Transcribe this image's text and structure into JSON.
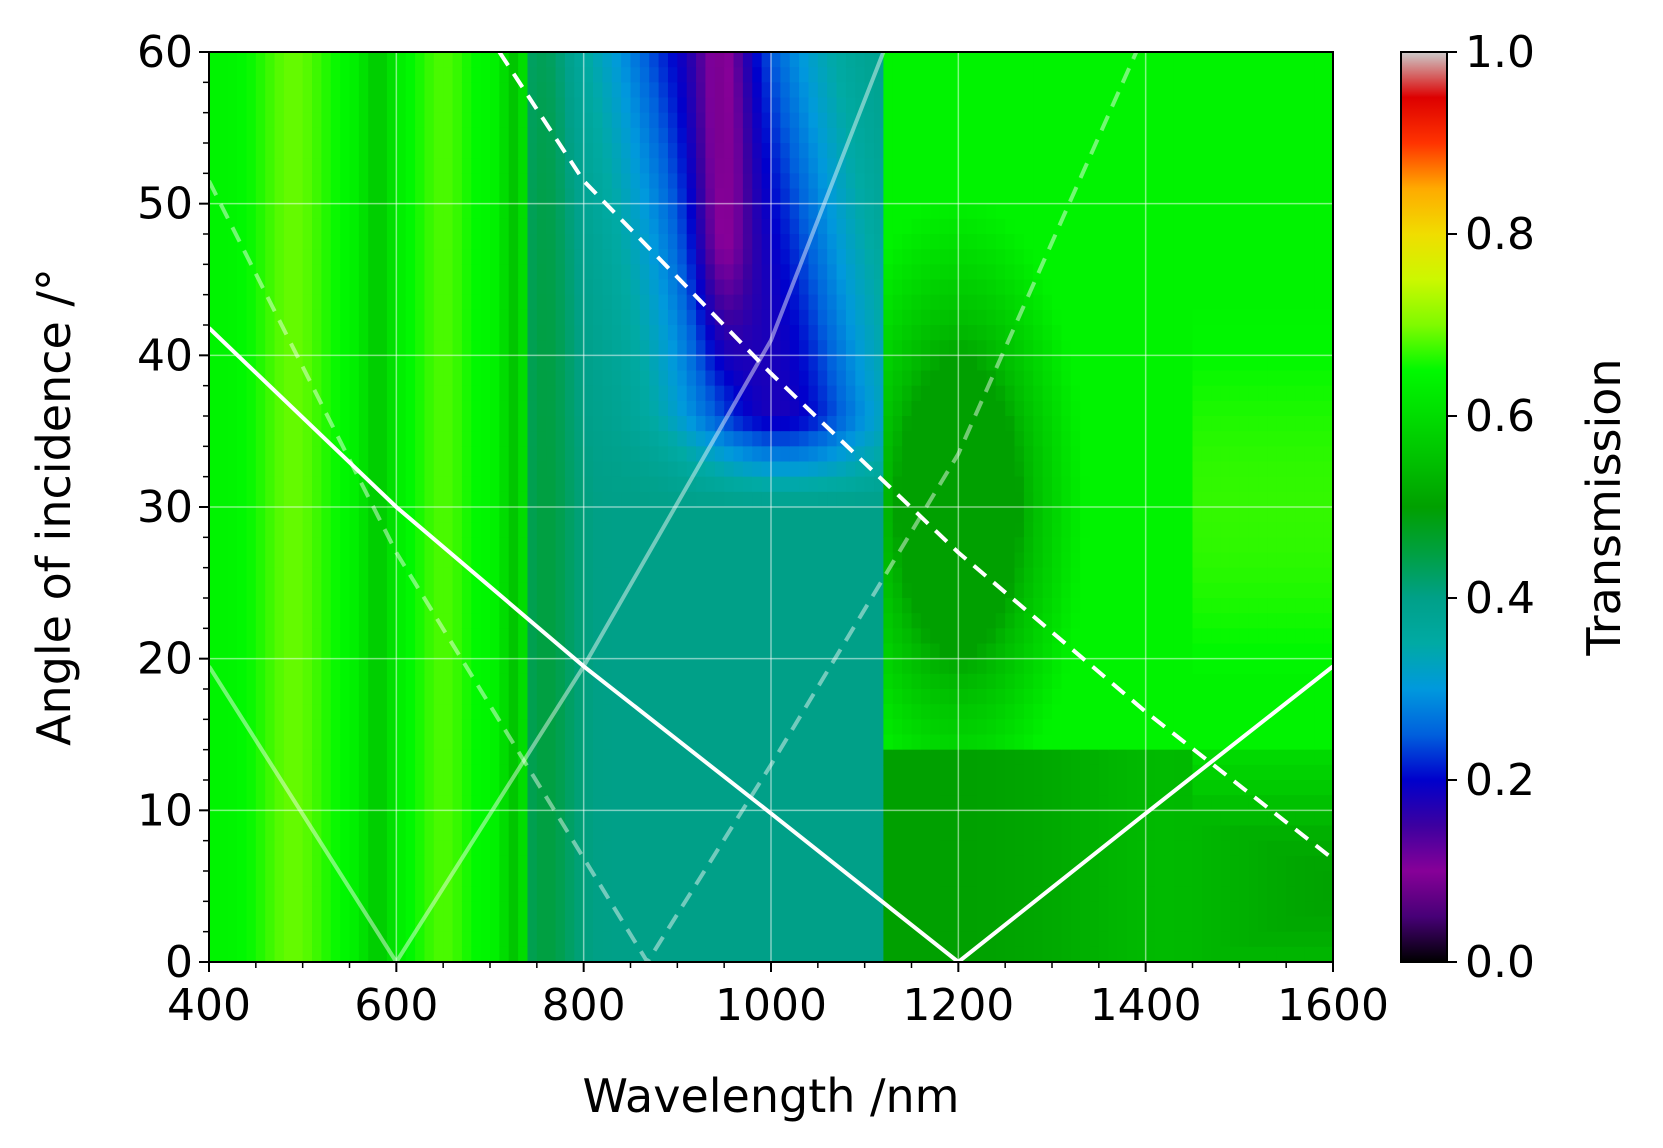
{
  "chart_data": {
    "type": "heatmap",
    "xlabel": "Wavelength /nm",
    "ylabel": "Angle of incidence /°",
    "colorbar_label": "Transmission",
    "xlim": [
      400,
      1600
    ],
    "ylim": [
      0,
      60
    ],
    "clim": [
      0,
      1
    ],
    "x_ticks": [
      400,
      600,
      800,
      1000,
      1200,
      1400,
      1600
    ],
    "x_tick_labels": [
      "400",
      "600",
      "800",
      "1000",
      "1200",
      "1400",
      "1600"
    ],
    "y_ticks": [
      0,
      10,
      20,
      30,
      40,
      50,
      60
    ],
    "y_tick_labels": [
      "0",
      "10",
      "20",
      "30",
      "40",
      "50",
      "60"
    ],
    "colorbar_ticks": [
      0.0,
      0.2,
      0.4,
      0.6,
      0.8,
      1.0
    ],
    "colorbar_tick_labels": [
      "0.0",
      "0.2",
      "0.4",
      "0.6",
      "0.8",
      "1.0"
    ],
    "grid": true,
    "colormap": "nipy_spectral",
    "colormap_stops": [
      {
        "v": 0.0,
        "color": "#000000"
      },
      {
        "v": 0.05,
        "color": "#470077"
      },
      {
        "v": 0.1,
        "color": "#870098"
      },
      {
        "v": 0.15,
        "color": "#3c00a0"
      },
      {
        "v": 0.2,
        "color": "#0000cc"
      },
      {
        "v": 0.25,
        "color": "#0060dd"
      },
      {
        "v": 0.3,
        "color": "#0099dd"
      },
      {
        "v": 0.35,
        "color": "#00aaa4"
      },
      {
        "v": 0.4,
        "color": "#00a088"
      },
      {
        "v": 0.45,
        "color": "#00a040"
      },
      {
        "v": 0.5,
        "color": "#00a000"
      },
      {
        "v": 0.55,
        "color": "#00c000"
      },
      {
        "v": 0.6,
        "color": "#00dd00"
      },
      {
        "v": 0.65,
        "color": "#00f900"
      },
      {
        "v": 0.7,
        "color": "#7ffa00"
      },
      {
        "v": 0.75,
        "color": "#ccf800"
      },
      {
        "v": 0.8,
        "color": "#f0dd00"
      },
      {
        "v": 0.85,
        "color": "#ffaa00"
      },
      {
        "v": 0.9,
        "color": "#ff3300"
      },
      {
        "v": 0.95,
        "color": "#dd0000"
      },
      {
        "v": 1.0,
        "color": "#cccccc"
      }
    ],
    "series": [
      {
        "style": "solid",
        "color": "#ffffff",
        "opacity": 1.0,
        "points": [
          [
            400,
            41.8
          ],
          [
            600,
            30
          ],
          [
            800,
            19.5
          ],
          [
            1000,
            9.8
          ],
          [
            1200,
            0
          ],
          [
            1400,
            9.8
          ],
          [
            1600,
            19.5
          ]
        ]
      },
      {
        "style": "dashed",
        "color": "#ffffff",
        "opacity": 1.0,
        "points": [
          [
            710,
            60
          ],
          [
            800,
            51.5
          ],
          [
            1000,
            38.8
          ],
          [
            1200,
            27
          ],
          [
            1400,
            16.5
          ],
          [
            1600,
            6.8
          ]
        ]
      },
      {
        "style": "solid",
        "color": "#ffffff",
        "opacity": 0.45,
        "points": [
          [
            400,
            19.5
          ],
          [
            600,
            0
          ],
          [
            800,
            19.5
          ],
          [
            1000,
            41
          ],
          [
            1120,
            60
          ]
        ]
      },
      {
        "style": "dashed",
        "color": "#ffffff",
        "opacity": 0.45,
        "points": [
          [
            400,
            51.5
          ],
          [
            600,
            27
          ],
          [
            868,
            0
          ],
          [
            1000,
            13
          ],
          [
            1200,
            33.5
          ],
          [
            1390,
            60
          ]
        ]
      }
    ]
  }
}
